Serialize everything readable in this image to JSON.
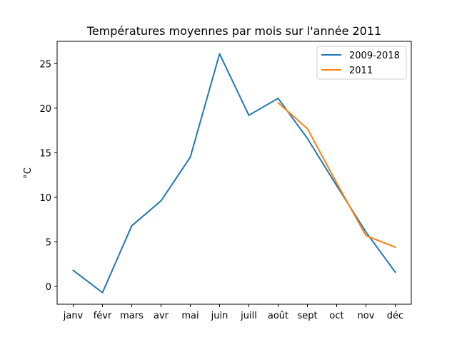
{
  "chart_data": {
    "type": "line",
    "title": "Températures moyennes par mois sur l'année 2011",
    "xlabel": "",
    "ylabel": "°C",
    "categories": [
      "janv",
      "févr",
      "mars",
      "avr",
      "mai",
      "juin",
      "juill",
      "août",
      "sept",
      "oct",
      "nov",
      "déc"
    ],
    "ylim": [
      -2,
      27.5
    ],
    "yticks": [
      0,
      5,
      10,
      15,
      20,
      25
    ],
    "grid": false,
    "legend_position": "top-right",
    "series": [
      {
        "name": "2009-2018",
        "color": "#1f77b4",
        "values": [
          1.8,
          -0.7,
          6.8,
          9.6,
          14.5,
          26.1,
          19.2,
          21.1,
          16.6,
          11.3,
          6.1,
          1.6
        ]
      },
      {
        "name": "2011",
        "color": "#ff7f0e",
        "values": [
          null,
          null,
          null,
          null,
          null,
          null,
          null,
          20.6,
          17.7,
          11.6,
          5.7,
          4.4
        ]
      }
    ]
  }
}
